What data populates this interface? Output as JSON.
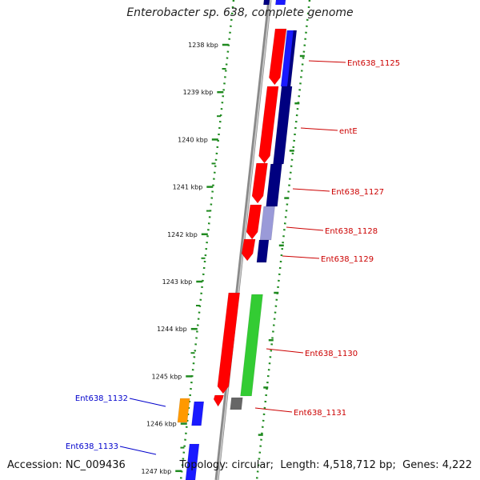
{
  "title": "Enterobacter sp. 638, complete genome",
  "footer": {
    "accession_label": "Accession:",
    "accession": "NC_009436",
    "topology_label": "Topology:",
    "topology": "circular",
    "length_label": "Length:",
    "length": "4,518,712 bp",
    "genes_label": "Genes:",
    "genes": "4,222"
  },
  "colors": {
    "backbone": "#8a8a8a",
    "tick": "#1f8a1f",
    "forward_gene": "#ff0000",
    "reverse_gene": "#1a1aff",
    "blast_dark": "#000080",
    "blast_light": "#9a9ad8",
    "green_feature": "#33cc33",
    "orange_feature": "#ff9900",
    "gray_feature": "#666666",
    "forward_label": "#cc0000",
    "reverse_label": "#0000cc"
  },
  "ticks": [
    {
      "label": "1238 kbp"
    },
    {
      "label": "1239 kbp"
    },
    {
      "label": "1240 kbp"
    },
    {
      "label": "1241 kbp"
    },
    {
      "label": "1242 kbp"
    },
    {
      "label": "1243 kbp"
    },
    {
      "label": "1244 kbp"
    },
    {
      "label": "1245 kbp"
    },
    {
      "label": "1246 kbp"
    },
    {
      "label": "1247 kbp"
    }
  ],
  "gene_labels": [
    {
      "name": "Ent638_1125",
      "strand": "forward"
    },
    {
      "name": "entE",
      "strand": "forward"
    },
    {
      "name": "Ent638_1127",
      "strand": "forward"
    },
    {
      "name": "Ent638_1128",
      "strand": "forward"
    },
    {
      "name": "Ent638_1129",
      "strand": "forward"
    },
    {
      "name": "Ent638_1130",
      "strand": "forward"
    },
    {
      "name": "Ent638_1131",
      "strand": "forward"
    },
    {
      "name": "Ent638_1132",
      "strand": "reverse"
    },
    {
      "name": "Ent638_1133",
      "strand": "reverse"
    }
  ]
}
